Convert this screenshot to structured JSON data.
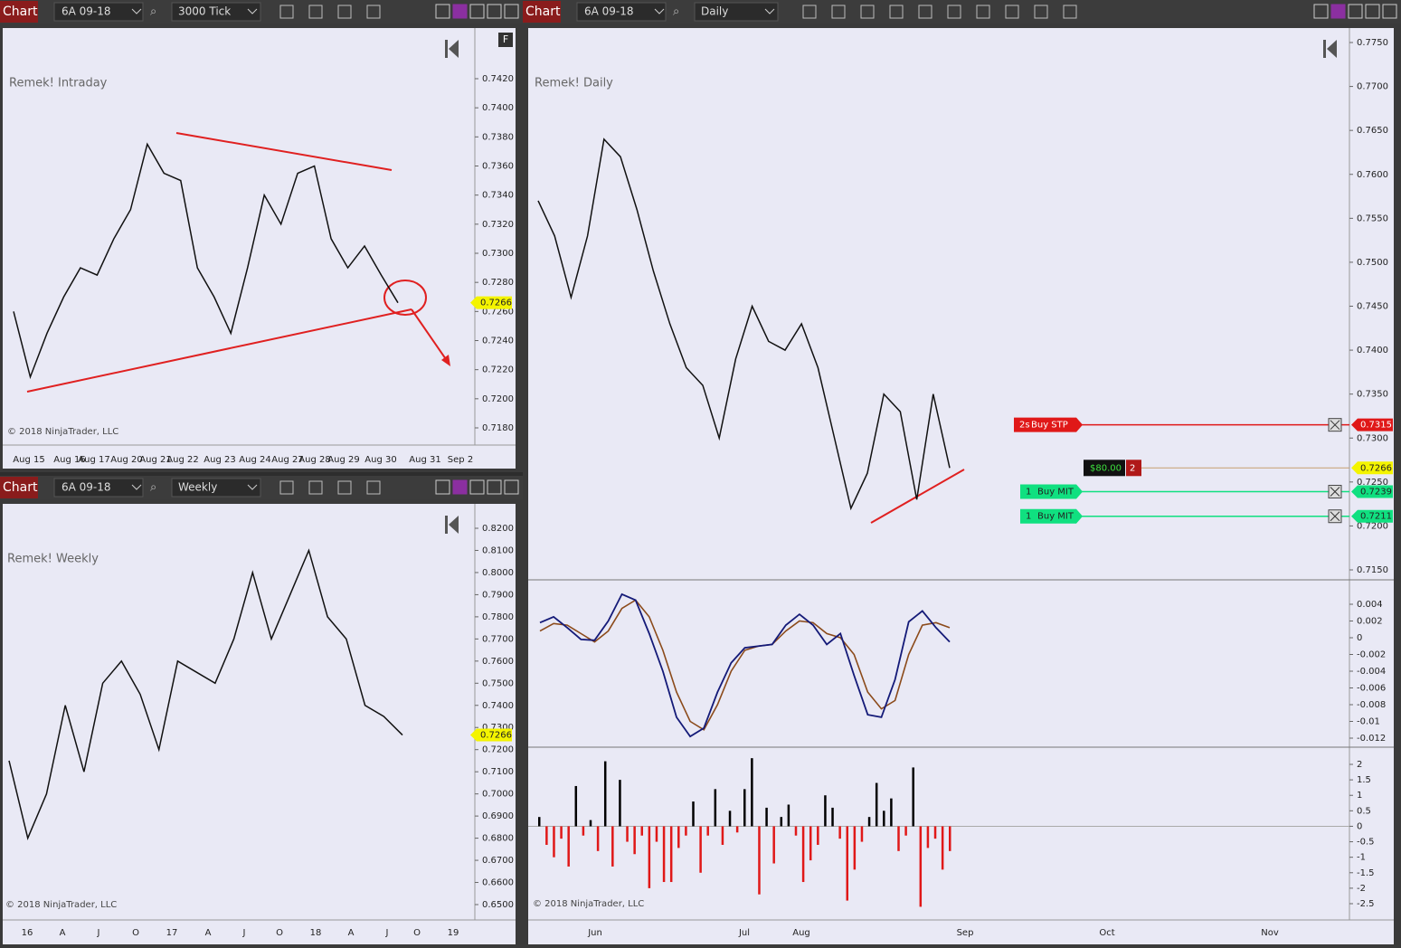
{
  "windows": [
    {
      "tab": "Chart",
      "instrument": "6A 09-18",
      "period": "3000 Tick",
      "indicator_label": "Remek! Intraday",
      "copyright": "© 2018 NinjaTrader, LLC",
      "flag": "F",
      "price_marker": "0.7266",
      "y_axis": [
        "0.7420",
        "0.7400",
        "0.7380",
        "0.7360",
        "0.7340",
        "0.7320",
        "0.7300",
        "0.7280",
        "0.7260",
        "0.7240",
        "0.7220",
        "0.7200",
        "0.7180"
      ],
      "x_axis": [
        "Aug 15",
        "Aug 16",
        "Aug 17",
        "Aug 20",
        "Aug 21",
        "Aug 22",
        "Aug 23",
        "Aug 24",
        "Aug 27",
        "Aug 28",
        "Aug 29",
        "Aug 30",
        "Aug 31",
        "Sep 2"
      ],
      "closes": [
        0.726,
        0.7215,
        0.7245,
        0.727,
        0.729,
        0.7285,
        0.731,
        0.733,
        0.7375,
        0.7355,
        0.735,
        0.729,
        0.727,
        0.7245,
        0.729,
        0.734,
        0.732,
        0.7355,
        0.736,
        0.731,
        0.729,
        0.7305,
        0.7285,
        0.7266
      ]
    },
    {
      "tab": "Chart",
      "instrument": "6A 09-18",
      "period": "Weekly",
      "indicator_label": "Remek! Weekly",
      "copyright": "© 2018 NinjaTrader, LLC",
      "price_marker": "0.7266",
      "y_axis": [
        "0.8200",
        "0.8100",
        "0.8000",
        "0.7900",
        "0.7800",
        "0.7700",
        "0.7600",
        "0.7500",
        "0.7400",
        "0.7300",
        "0.7200",
        "0.7100",
        "0.7000",
        "0.6900",
        "0.6800",
        "0.6700",
        "0.6600",
        "0.6500"
      ],
      "x_axis": [
        "16",
        "A",
        "J",
        "O",
        "17",
        "A",
        "J",
        "O",
        "18",
        "A",
        "J",
        "O",
        "19"
      ],
      "closes": [
        0.715,
        0.68,
        0.7,
        0.74,
        0.71,
        0.75,
        0.76,
        0.745,
        0.72,
        0.76,
        0.755,
        0.75,
        0.77,
        0.8,
        0.77,
        0.79,
        0.81,
        0.78,
        0.77,
        0.74,
        0.735,
        0.7266
      ]
    },
    {
      "tab": "Chart",
      "instrument": "6A 09-18",
      "period": "Daily",
      "indicator_label": "Remek! Daily",
      "copyright": "© 2018 NinjaTrader, LLC",
      "y_axis": [
        "0.7750",
        "0.7700",
        "0.7650",
        "0.7600",
        "0.7550",
        "0.7500",
        "0.7450",
        "0.7400",
        "0.7350",
        "0.7300",
        "0.7250",
        "0.7200",
        "0.7150"
      ],
      "x_axis": [
        "Jun",
        "Jul",
        "Aug",
        "Sep",
        "Oct",
        "Nov"
      ],
      "closes": [
        0.757,
        0.753,
        0.746,
        0.753,
        0.764,
        0.762,
        0.756,
        0.749,
        0.743,
        0.738,
        0.736,
        0.73,
        0.739,
        0.745,
        0.741,
        0.74,
        0.743,
        0.738,
        0.73,
        0.722,
        0.726,
        0.735,
        0.733,
        0.723,
        0.735,
        0.7266
      ],
      "orders": [
        {
          "quantity": "2s",
          "type": "Buy STP",
          "price": "0.7315"
        },
        {
          "quantity": "1",
          "type": "Buy MIT",
          "price": "0.7239"
        },
        {
          "quantity": "1",
          "type": "Buy MIT",
          "price": "0.7211"
        }
      ],
      "position": {
        "pnl": "$80.00",
        "quantity": "2",
        "price": "0.7266"
      },
      "oscillator": {
        "axis": [
          "0.004",
          "0.002",
          "0",
          "-0.002",
          "-0.004",
          "-0.006",
          "-0.008",
          "-0.01",
          "-0.012"
        ],
        "fast": [
          0.0018,
          0.0025,
          0.0012,
          -0.0002,
          -0.0003,
          0.002,
          0.0052,
          0.0045,
          0.0005,
          -0.004,
          -0.0095,
          -0.0118,
          -0.0108,
          -0.0065,
          -0.003,
          -0.0012,
          -0.001,
          -0.0008,
          0.0015,
          0.0028,
          0.0015,
          -0.0008,
          0.0005,
          -0.0045,
          -0.0092,
          -0.0095,
          -0.005,
          0.0019,
          0.0032,
          0.0012,
          -0.0005
        ],
        "slow": [
          0.0008,
          0.0017,
          0.0015,
          0.0005,
          -0.0005,
          0.0008,
          0.0035,
          0.0045,
          0.0025,
          -0.0015,
          -0.0065,
          -0.01,
          -0.011,
          -0.008,
          -0.004,
          -0.0015,
          -0.001,
          -0.0008,
          0.0008,
          0.002,
          0.0018,
          0.0005,
          0.0,
          -0.002,
          -0.0065,
          -0.0085,
          -0.0075,
          -0.002,
          0.0015,
          0.0018,
          0.0012
        ]
      },
      "histogram": {
        "axis": [
          "2",
          "1.5",
          "1",
          "0.5",
          "0",
          "-0.5",
          "-1",
          "-1.5",
          "-2",
          "-2.5"
        ],
        "values": [
          0.3,
          -0.6,
          -1,
          -0.4,
          -1.3,
          1.3,
          -0.3,
          0.2,
          -0.8,
          2.1,
          -1.3,
          1.5,
          -0.5,
          -0.9,
          -0.3,
          -2,
          -0.5,
          -1.8,
          -1.8,
          -0.7,
          -0.3,
          0.8,
          -1.5,
          -0.3,
          1.2,
          -0.6,
          0.5,
          -0.2,
          1.2,
          2.2,
          -2.2,
          0.6,
          -1.2,
          0.3,
          0.7,
          -0.3,
          -1.8,
          -1.1,
          -0.6,
          1,
          0.6,
          -0.4,
          -2.4,
          -1.4,
          -0.5,
          0.3,
          1.4,
          0.5,
          0.9,
          -0.8,
          -0.3,
          1.9,
          -2.6,
          -0.7,
          -0.4,
          -1.4,
          -0.8
        ]
      }
    }
  ]
}
